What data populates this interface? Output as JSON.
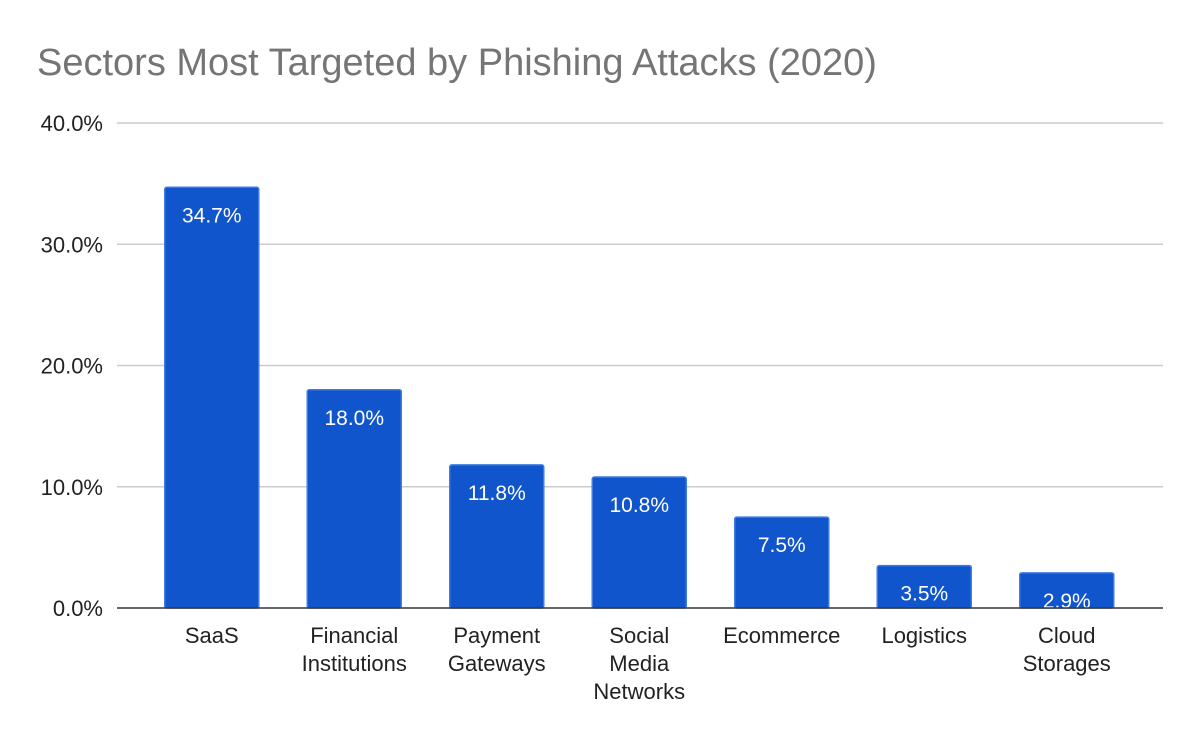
{
  "chart_data": {
    "type": "bar",
    "title": "Sectors Most Targeted by Phishing Attacks (2020)",
    "xlabel": "",
    "ylabel": "",
    "ylim": [
      0,
      40
    ],
    "yticks": [
      0,
      10,
      20,
      30,
      40
    ],
    "ytick_labels": [
      "0.0%",
      "10.0%",
      "20.0%",
      "30.0%",
      "40.0%"
    ],
    "grid": true,
    "legend": "none",
    "colors": {
      "bar": "#1155cc",
      "bar_edge": "#3d7be0",
      "title": "#757575"
    },
    "categories": [
      [
        "SaaS"
      ],
      [
        "Financial",
        "Institutions"
      ],
      [
        "Payment",
        "Gateways"
      ],
      [
        "Social",
        "Media",
        "Networks"
      ],
      [
        "Ecommerce"
      ],
      [
        "Logistics"
      ],
      [
        "Cloud",
        "Storages"
      ]
    ],
    "values": [
      34.7,
      18.0,
      11.8,
      10.8,
      7.5,
      3.5,
      2.9
    ],
    "data_labels": [
      "34.7%",
      "18.0%",
      "11.8%",
      "10.8%",
      "7.5%",
      "3.5%",
      "2.9%"
    ]
  }
}
